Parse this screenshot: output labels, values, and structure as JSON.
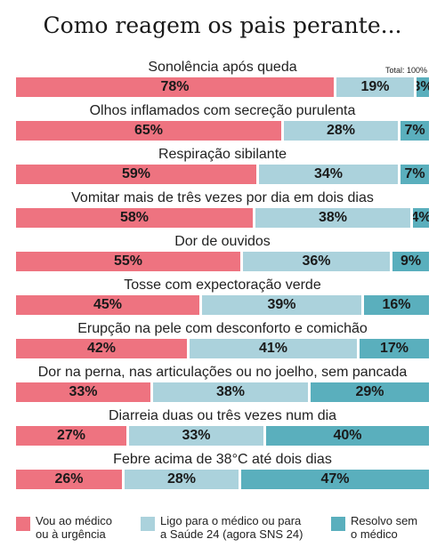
{
  "chart_data": {
    "type": "bar",
    "orientation": "horizontal",
    "stacked": true,
    "title": "Como reagem os pais perante...",
    "total_note": "Total: 100%",
    "categories": [
      "Sonolência após queda",
      "Olhos inflamados com secreção purulenta",
      "Respiração sibilante",
      "Vomitar mais de três vezes por dia em dois dias",
      "Dor de ouvidos",
      "Tosse com expectoração verde",
      "Erupção na pele com desconforto e comichão",
      "Dor na perna, nas articulações ou no joelho, sem pancada",
      "Diarreia duas ou três vezes num dia",
      "Febre acima de 38°C até dois dias"
    ],
    "series": [
      {
        "name": "Vou ao médico ou à urgência",
        "color": "#ee7380",
        "values": [
          78,
          65,
          59,
          58,
          55,
          45,
          42,
          33,
          27,
          26
        ]
      },
      {
        "name": "Ligo para o médico ou para a Saúde 24 (agora SNS 24)",
        "color": "#abd2dc",
        "values": [
          19,
          28,
          34,
          38,
          36,
          39,
          41,
          38,
          33,
          28
        ]
      },
      {
        "name": "Resolvo sem o médico",
        "color": "#5aafbd",
        "values": [
          3,
          7,
          7,
          4,
          9,
          16,
          17,
          29,
          40,
          47
        ]
      }
    ],
    "value_suffix": "%",
    "xlim": [
      0,
      100
    ],
    "legend_position": "bottom"
  },
  "legend": [
    {
      "label": "Vou ao médico\nou à urgência",
      "color": "#ee7380"
    },
    {
      "label": "Ligo para o médico ou para\na Saúde 24 (agora SNS 24)",
      "color": "#abd2dc"
    },
    {
      "label": "Resolvo sem\no médico",
      "color": "#5aafbd"
    }
  ]
}
